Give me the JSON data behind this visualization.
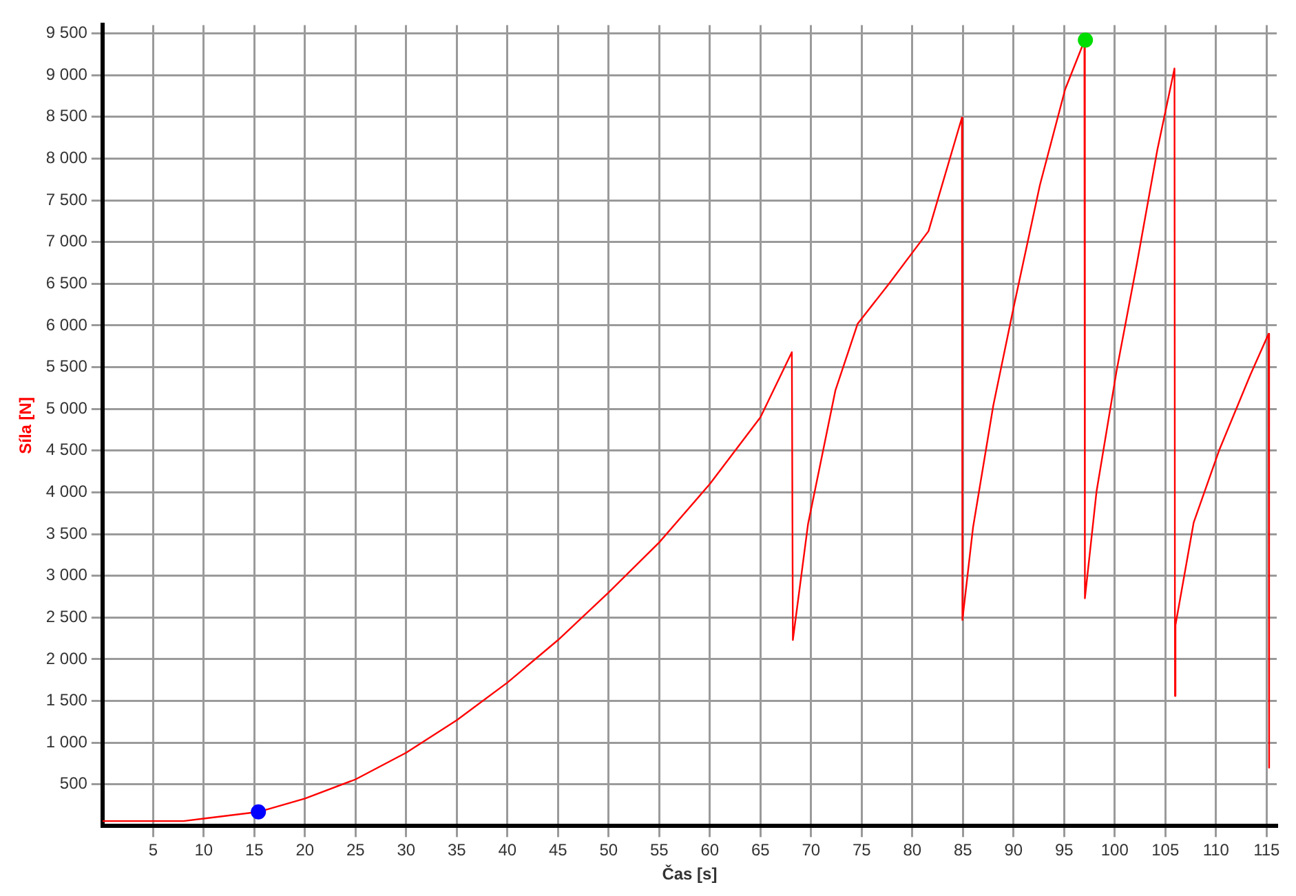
{
  "chart_data": {
    "type": "line",
    "xlabel": "Čas [s]",
    "ylabel": "Síla [N]",
    "xlim": [
      0,
      116
    ],
    "ylim": [
      0,
      9600
    ],
    "xticks": [
      5,
      10,
      15,
      20,
      25,
      30,
      35,
      40,
      45,
      50,
      55,
      60,
      65,
      70,
      75,
      80,
      85,
      90,
      95,
      100,
      105,
      110,
      115
    ],
    "yticks": [
      500,
      {
        "value": 1000,
        "label": "1 000"
      },
      {
        "value": 1500,
        "label": "1 500"
      },
      {
        "value": 2000,
        "label": "2 000"
      },
      {
        "value": 2500,
        "label": "2 500"
      },
      {
        "value": 3000,
        "label": "3 000"
      },
      {
        "value": 3500,
        "label": "3 500"
      },
      {
        "value": 4000,
        "label": "4 000"
      },
      {
        "value": 4500,
        "label": "4 500"
      },
      {
        "value": 5000,
        "label": "5 000"
      },
      {
        "value": 5500,
        "label": "5 500"
      },
      {
        "value": 6000,
        "label": "6 000"
      },
      {
        "value": 6500,
        "label": "6 500"
      },
      {
        "value": 7000,
        "label": "7 000"
      },
      {
        "value": 7500,
        "label": "7 500"
      },
      {
        "value": 8000,
        "label": "8 000"
      },
      {
        "value": 8500,
        "label": "8 500"
      },
      {
        "value": 9000,
        "label": "9 000"
      },
      {
        "value": 9500,
        "label": "9 500"
      }
    ],
    "grid": true,
    "legend": false,
    "line_style": "solid",
    "series": [
      {
        "marker": "none",
        "color": "#ff0000",
        "x": [
          0,
          8,
          10,
          15.4,
          20,
          25,
          30,
          35,
          40,
          45,
          50,
          55,
          60,
          65,
          68.1,
          68.2,
          69.7,
          71.05,
          72.4,
          74.6,
          77.7,
          81.6,
          84.9,
          84.95,
          86.0,
          88.0,
          90.1,
          92.6,
          95.1,
          96.8,
          97.0,
          97.05,
          98.2,
          100.2,
          102.2,
          104.2,
          105.9,
          105.95,
          106.0,
          107.8,
          110.3,
          113.4,
          115.2,
          115.25
        ],
        "values": [
          60,
          60,
          90,
          170,
          330,
          560,
          880,
          1270,
          1720,
          2230,
          2800,
          3400,
          4100,
          4900,
          5680,
          2230,
          3620,
          4420,
          5220,
          6020,
          6500,
          7130,
          8490,
          2470,
          3580,
          5040,
          6270,
          7680,
          8830,
          9350,
          9400,
          2730,
          4010,
          5470,
          6750,
          8100,
          9080,
          1560,
          2410,
          3640,
          4500,
          5410,
          5900,
          700
        ]
      },
      {
        "type": "scatter",
        "marker": "circle",
        "color": "#0000ff",
        "x": [
          15.4
        ],
        "values": [
          170
        ]
      },
      {
        "type": "scatter",
        "marker": "circle",
        "color": "#00dd00",
        "x": [
          97.1
        ],
        "values": [
          9420
        ]
      }
    ]
  }
}
